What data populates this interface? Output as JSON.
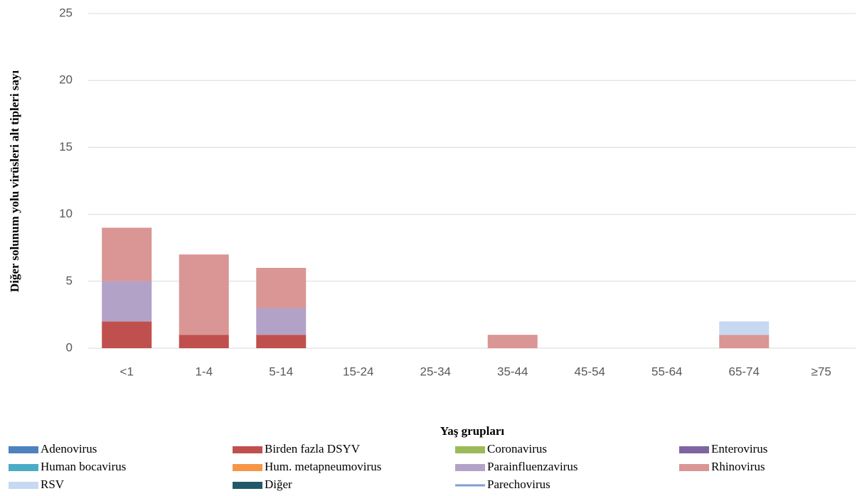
{
  "chart_data": {
    "type": "stacked_bar",
    "x_label": "Yaş grupları",
    "y_label": "Diğer solunum yolu virüsleri alt tipleri sayı",
    "categories": [
      "<1",
      "1-4",
      "5-14",
      "15-24",
      "25-34",
      "35-44",
      "45-54",
      "55-64",
      "65-74",
      "≥75"
    ],
    "series": [
      {
        "name": "Adenovirus",
        "color": "#4f81bd",
        "values": [
          0,
          0,
          0,
          0,
          0,
          0,
          0,
          0,
          0,
          0
        ]
      },
      {
        "name": "Birden fazla DSYV",
        "color": "#c0504d",
        "values": [
          2,
          1,
          1,
          0,
          0,
          0,
          0,
          0,
          0,
          0
        ]
      },
      {
        "name": "Coronavirus",
        "color": "#9bbb59",
        "values": [
          0,
          0,
          0,
          0,
          0,
          0,
          0,
          0,
          0,
          0
        ]
      },
      {
        "name": "Enterovirus",
        "color": "#8064a2",
        "values": [
          0,
          0,
          0,
          0,
          0,
          0,
          0,
          0,
          0,
          0
        ]
      },
      {
        "name": "Human bocavirus",
        "color": "#4bacc6",
        "values": [
          0,
          0,
          0,
          0,
          0,
          0,
          0,
          0,
          0,
          0
        ]
      },
      {
        "name": "Hum. metapneumovirus",
        "color": "#f79646",
        "values": [
          0,
          0,
          0,
          0,
          0,
          0,
          0,
          0,
          0,
          0
        ]
      },
      {
        "name": "Parainfluenzavirus",
        "color": "#b3a2c7",
        "values": [
          3,
          0,
          2,
          0,
          0,
          0,
          0,
          0,
          0,
          0
        ]
      },
      {
        "name": "Rhinovirus",
        "color": "#d99694",
        "values": [
          4,
          6,
          3,
          0,
          0,
          1,
          0,
          0,
          1,
          0
        ]
      },
      {
        "name": "RSV",
        "color": "#c6d9f1",
        "values": [
          0,
          0,
          0,
          0,
          0,
          0,
          0,
          0,
          1,
          0
        ]
      },
      {
        "name": "Diğer",
        "color": "#215968",
        "values": [
          0,
          0,
          0,
          0,
          0,
          0,
          0,
          0,
          0,
          0
        ]
      },
      {
        "name": "Parechovirus",
        "color": "#7f9fcf",
        "marker": "line",
        "values": [
          0,
          0,
          0,
          0,
          0,
          0,
          0,
          0,
          0,
          0
        ]
      }
    ],
    "ylim": [
      0,
      25
    ],
    "yticks": [
      0,
      5,
      10,
      15,
      20,
      25
    ],
    "grid": true
  }
}
